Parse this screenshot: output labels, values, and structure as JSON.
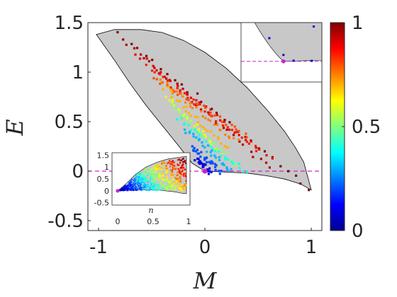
{
  "chart_data": [
    {
      "type": "scatter",
      "role": "main",
      "xlabel": "M",
      "ylabel": "E",
      "xlim": [
        -1.1,
        1.1
      ],
      "ylim": [
        -0.6,
        1.5
      ],
      "xticks": [
        -1,
        0,
        1
      ],
      "xtick_labels": [
        "-1",
        "0",
        "1"
      ],
      "yticks": [
        1.5,
        1,
        0.5,
        0,
        -0.5
      ],
      "ytick_labels": [
        "1.5",
        "1",
        "0.5",
        "0",
        "-0.5"
      ],
      "grid": false,
      "region_fill": "#c8c8c8",
      "region_upper": [
        [
          -1.02,
          1.38
        ],
        [
          -0.85,
          1.43
        ],
        [
          -0.6,
          1.43
        ],
        [
          -0.4,
          1.4
        ],
        [
          -0.2,
          1.32
        ],
        [
          0.0,
          1.2
        ],
        [
          0.2,
          1.04
        ],
        [
          0.4,
          0.84
        ],
        [
          0.6,
          0.6
        ],
        [
          0.75,
          0.4
        ],
        [
          0.85,
          0.24
        ],
        [
          0.93,
          0.09
        ],
        [
          1.0,
          -0.19
        ]
      ],
      "region_lower": [
        [
          -1.02,
          1.38
        ],
        [
          -0.85,
          1.12
        ],
        [
          -0.7,
          0.88
        ],
        [
          -0.55,
          0.66
        ],
        [
          -0.4,
          0.46
        ],
        [
          -0.25,
          0.26
        ],
        [
          -0.12,
          0.08
        ],
        [
          0.0,
          0.0
        ],
        [
          0.2,
          -0.01
        ],
        [
          0.4,
          -0.02
        ],
        [
          0.6,
          -0.05
        ],
        [
          0.75,
          -0.08
        ],
        [
          0.9,
          -0.13
        ],
        [
          1.0,
          -0.19
        ]
      ],
      "reference_line": {
        "y": 0,
        "color": "#d020d0",
        "style": "dashed"
      },
      "marker_point": {
        "x": 0,
        "y": 0,
        "color": "#d020d0"
      },
      "point_families": [
        {
          "x": [
            -0.82,
            0.98
          ],
          "y": [
            1.4,
            -0.17
          ],
          "value": 1.0
        },
        {
          "x": [
            -0.72,
            0.62
          ],
          "y": [
            1.28,
            0.02
          ],
          "value": 0.95
        },
        {
          "x": [
            -0.64,
            0.62
          ],
          "y": [
            1.2,
            0.12
          ],
          "value": 0.9
        },
        {
          "x": [
            -0.55,
            0.5
          ],
          "y": [
            1.05,
            0.22
          ],
          "value": 0.85
        },
        {
          "x": [
            -0.48,
            0.4
          ],
          "y": [
            0.95,
            0.35
          ],
          "value": 0.8
        },
        {
          "x": [
            -0.42,
            0.3
          ],
          "y": [
            0.92,
            0.3
          ],
          "value": 0.75
        },
        {
          "x": [
            -0.38,
            0.22
          ],
          "y": [
            0.85,
            0.22
          ],
          "value": 0.7
        },
        {
          "x": [
            -0.35,
            0.15
          ],
          "y": [
            0.75,
            0.18
          ],
          "value": 0.6
        },
        {
          "x": [
            -0.3,
            0.3
          ],
          "y": [
            0.65,
            0.05
          ],
          "value": 0.5
        },
        {
          "x": [
            -0.28,
            0.38
          ],
          "y": [
            0.55,
            -0.01
          ],
          "value": 0.4
        },
        {
          "x": [
            -0.18,
            0.25
          ],
          "y": [
            0.42,
            0.0
          ],
          "value": 0.3
        },
        {
          "x": [
            -0.12,
            0.15
          ],
          "y": [
            0.25,
            -0.01
          ],
          "value": 0.2
        },
        {
          "x": [
            -0.08,
            0.05
          ],
          "y": [
            0.12,
            -0.01
          ],
          "value": 0.1
        }
      ]
    },
    {
      "type": "scatter",
      "role": "inset-bottom-left",
      "xlabel": "n",
      "ylabel": "",
      "xlim": [
        -0.08,
        1.02
      ],
      "ylim": [
        -0.6,
        1.6
      ],
      "xticks": [
        0,
        0.5,
        1
      ],
      "xtick_labels": [
        "0",
        "0.5",
        "1"
      ],
      "yticks": [
        1.5,
        1,
        0.5,
        0,
        -0.5
      ],
      "ytick_labels": [
        "1.5",
        "1",
        "0.5",
        "0",
        "-0.5"
      ],
      "region_fill": "#c8c8c8",
      "region_upper": [
        [
          0.0,
          0.0
        ],
        [
          0.12,
          0.3
        ],
        [
          0.25,
          0.68
        ],
        [
          0.4,
          1.0
        ],
        [
          0.55,
          1.2
        ],
        [
          0.7,
          1.33
        ],
        [
          0.85,
          1.4
        ],
        [
          0.97,
          1.45
        ]
      ],
      "region_lower": [
        [
          0.0,
          0.0
        ],
        [
          0.2,
          0.02
        ],
        [
          0.4,
          0.04
        ],
        [
          0.6,
          0.02
        ],
        [
          0.8,
          -0.04
        ],
        [
          0.9,
          -0.1
        ],
        [
          0.97,
          -0.12
        ]
      ],
      "marker_point": {
        "x": 0,
        "y": 0,
        "color": "#d020d0"
      }
    },
    {
      "type": "scatter",
      "role": "inset-top-right",
      "region_fill": "#c8c8c8",
      "reference_line": {
        "y": 0,
        "color": "#d020d0",
        "style": "dashed"
      },
      "marker_point": {
        "x": 0,
        "y": 0,
        "color": "#d020d0"
      },
      "points": [
        {
          "x": -0.3,
          "y": 0.9,
          "value": 0.1
        },
        {
          "x": 0.8,
          "y": 1.35,
          "value": 0.1
        },
        {
          "x": 0.05,
          "y": 0.25,
          "value": 0.1
        },
        {
          "x": 0.3,
          "y": 0.03,
          "value": 0.1
        },
        {
          "x": 0.75,
          "y": 0.02,
          "value": 0.1
        }
      ]
    }
  ],
  "colorbar": {
    "min": 0,
    "max": 1,
    "ticks": [
      0,
      0.5,
      1
    ],
    "tick_labels": [
      "0",
      "0.5",
      "1"
    ],
    "colormap": "jet"
  }
}
